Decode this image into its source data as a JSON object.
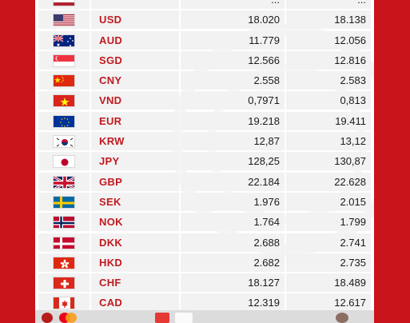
{
  "table": {
    "rows": [
      {
        "code": "",
        "buy": "...",
        "sell": "...",
        "flag": "partial-flag-icon"
      },
      {
        "code": "USD",
        "buy": "18.020",
        "sell": "18.138",
        "flag": "us-flag-icon"
      },
      {
        "code": "AUD",
        "buy": "11.779",
        "sell": "12.056",
        "flag": "au-flag-icon"
      },
      {
        "code": "SGD",
        "buy": "12.566",
        "sell": "12.816",
        "flag": "sg-flag-icon"
      },
      {
        "code": "CNY",
        "buy": "2.558",
        "sell": "2.583",
        "flag": "cn-flag-icon"
      },
      {
        "code": "VND",
        "buy": "0,7971",
        "sell": "0,813",
        "flag": "vn-flag-icon"
      },
      {
        "code": "EUR",
        "buy": "19.218",
        "sell": "19.411",
        "flag": "eu-flag-icon"
      },
      {
        "code": "KRW",
        "buy": "12,87",
        "sell": "13,12",
        "flag": "kr-flag-icon"
      },
      {
        "code": "JPY",
        "buy": "128,25",
        "sell": "130,87",
        "flag": "jp-flag-icon"
      },
      {
        "code": "GBP",
        "buy": "22.184",
        "sell": "22.628",
        "flag": "gb-flag-icon"
      },
      {
        "code": "SEK",
        "buy": "1.976",
        "sell": "2.015",
        "flag": "se-flag-icon"
      },
      {
        "code": "NOK",
        "buy": "1.764",
        "sell": "1.799",
        "flag": "no-flag-icon"
      },
      {
        "code": "DKK",
        "buy": "2.688",
        "sell": "2.741",
        "flag": "dk-flag-icon"
      },
      {
        "code": "HKD",
        "buy": "2.682",
        "sell": "2.735",
        "flag": "hk-flag-icon"
      },
      {
        "code": "CHF",
        "buy": "18.127",
        "sell": "18.489",
        "flag": "ch-flag-icon"
      },
      {
        "code": "CAD",
        "buy": "12.319",
        "sell": "12.617",
        "flag": "ca-flag-icon"
      }
    ]
  },
  "colors": {
    "background": "#c8141a",
    "code_text": "#c01a1f",
    "cell": "#f2f2f2"
  }
}
